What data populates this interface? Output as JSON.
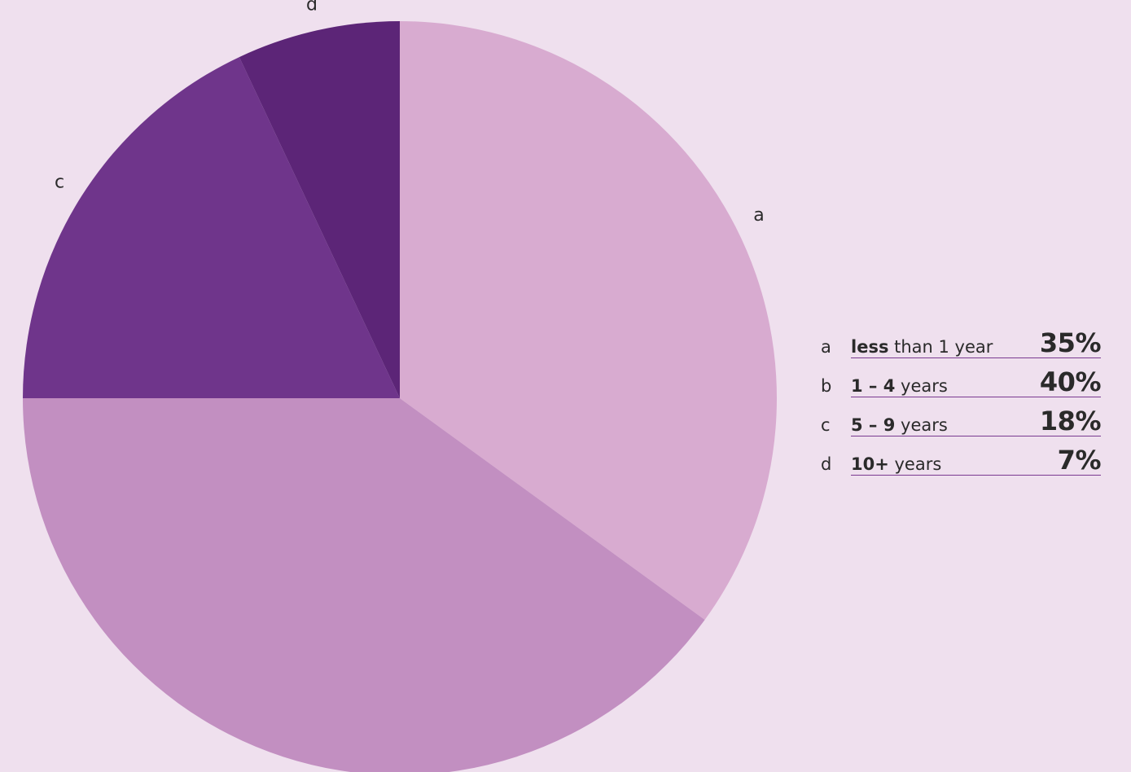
{
  "chart_data": {
    "type": "pie",
    "title": "",
    "start_angle_deg": 0,
    "direction": "clockwise",
    "slices": [
      {
        "key": "a",
        "label_bold": "less",
        "label_rest": " than 1 year",
        "value": 35,
        "value_label": "35%",
        "color": "#d8abd0"
      },
      {
        "key": "b",
        "label_bold": "1 – 4",
        "label_rest": " years",
        "value": 40,
        "value_label": "40%",
        "color": "#c28fc1"
      },
      {
        "key": "c",
        "label_bold": "5 – 9",
        "label_rest": " years",
        "value": 18,
        "value_label": "18%",
        "color": "#6f358b"
      },
      {
        "key": "d",
        "label_bold": "10+",
        "label_rest": " years",
        "value": 7,
        "value_label": "7%",
        "color": "#5c2577"
      }
    ],
    "legend_placement": "right"
  }
}
